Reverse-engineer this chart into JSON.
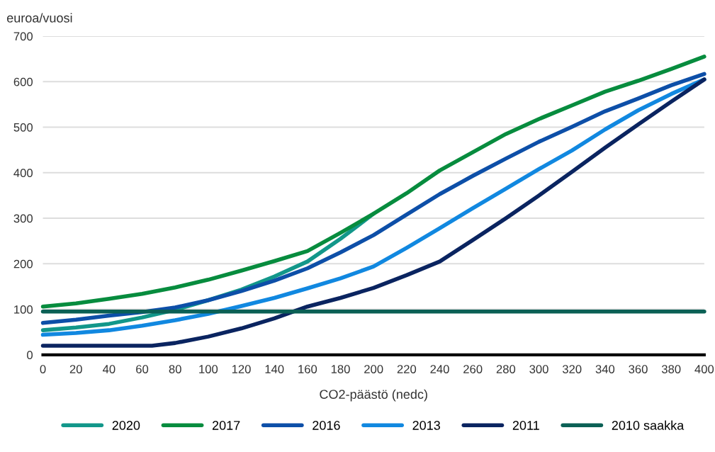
{
  "chart_data": {
    "type": "line",
    "xlabel": "CO2-päästö (nedc)",
    "ylabel": "euroa/vuosi",
    "x": [
      0,
      20,
      40,
      60,
      80,
      100,
      120,
      140,
      160,
      180,
      200,
      220,
      240,
      260,
      280,
      300,
      320,
      340,
      360,
      380,
      400
    ],
    "series": [
      {
        "name": "2020",
        "color": "#12978a",
        "x": [
          0,
          20,
          40,
          60,
          80,
          100,
          120,
          140,
          160,
          180,
          200
        ],
        "values": [
          54,
          60,
          68,
          82,
          99,
          120,
          143,
          172,
          205,
          255,
          310
        ]
      },
      {
        "name": "2017",
        "color": "#078c3e",
        "values": [
          106,
          113,
          123,
          134,
          148,
          165,
          185,
          206,
          228,
          268,
          310,
          355,
          405,
          445,
          485,
          518,
          548,
          578,
          602,
          628,
          655
        ]
      },
      {
        "name": "2016",
        "color": "#0d4fa8",
        "values": [
          70,
          77,
          86,
          94,
          104,
          120,
          140,
          163,
          190,
          225,
          263,
          308,
          353,
          393,
          431,
          468,
          501,
          535,
          563,
          592,
          617
        ]
      },
      {
        "name": "2013",
        "color": "#1188e0",
        "values": [
          44,
          48,
          54,
          64,
          76,
          90,
          107,
          125,
          146,
          168,
          194,
          235,
          278,
          322,
          365,
          408,
          449,
          495,
          537,
          573,
          605
        ]
      },
      {
        "name": "2011",
        "color": "#0a2460",
        "x": [
          0,
          20,
          40,
          60,
          66,
          80,
          100,
          120,
          140,
          160,
          180,
          200,
          220,
          240,
          260,
          280,
          300,
          320,
          340,
          360,
          380,
          400
        ],
        "values": [
          20,
          20,
          20,
          20,
          20,
          26,
          40,
          58,
          80,
          106,
          125,
          147,
          175,
          205,
          252,
          300,
          350,
          402,
          455,
          506,
          556,
          605
        ]
      },
      {
        "name": "2010 saakka",
        "color": "#0b6055",
        "x": [
          0,
          400
        ],
        "values": [
          95,
          95
        ]
      }
    ],
    "xlim": [
      0,
      400
    ],
    "xticks": [
      0,
      20,
      40,
      60,
      80,
      100,
      120,
      140,
      160,
      180,
      200,
      220,
      240,
      260,
      280,
      300,
      320,
      340,
      360,
      380,
      400
    ],
    "ylim": [
      0,
      700
    ],
    "yticks": [
      0,
      100,
      200,
      300,
      400,
      500,
      600,
      700
    ],
    "grid": "y",
    "legend": "bottom",
    "marker": "none",
    "line_style": "solid"
  }
}
